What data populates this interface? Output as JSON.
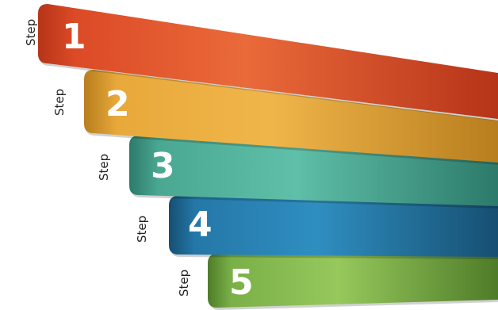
{
  "steps": [
    {
      "label": "Step",
      "number": "1",
      "colors": {
        "light": "#ea6a3a",
        "main": "#dc4a26",
        "dark": "#b63418"
      }
    },
    {
      "label": "Step",
      "number": "2",
      "colors": {
        "light": "#f0b54a",
        "main": "#e8a93a",
        "dark": "#b87e1e"
      }
    },
    {
      "label": "Step",
      "number": "3",
      "colors": {
        "light": "#5fbfa8",
        "main": "#4aa892",
        "dark": "#2c7a6a"
      }
    },
    {
      "label": "Step",
      "number": "4",
      "colors": {
        "light": "#2f8ec0",
        "main": "#2478a8",
        "dark": "#164f72"
      }
    },
    {
      "label": "Step",
      "number": "5",
      "colors": {
        "light": "#96c85c",
        "main": "#7ab048",
        "dark": "#4e7c28"
      }
    }
  ]
}
